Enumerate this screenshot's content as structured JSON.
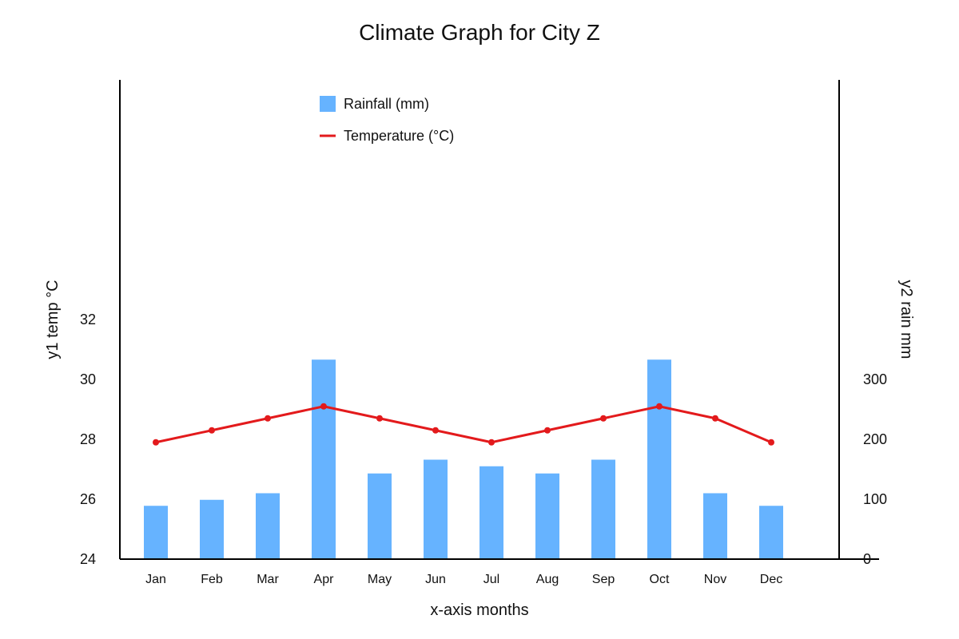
{
  "chart_data": {
    "type": "bar",
    "title": "Climate Graph for City Z",
    "xlabel": "x-axis months",
    "ylabel_left": "y1 temp °C",
    "ylabel_right": "y2 rain mm",
    "categories": [
      "Jan",
      "Feb",
      "Mar",
      "Apr",
      "May",
      "Jun",
      "Jul",
      "Aug",
      "Sep",
      "Oct",
      "Nov",
      "Dec"
    ],
    "series": [
      {
        "name": "Rainfall (mm)",
        "type": "bar",
        "axis": "right",
        "color": "#66b3ff",
        "values": [
          89,
          99,
          110,
          333,
          143,
          166,
          155,
          143,
          166,
          333,
          110,
          89
        ]
      },
      {
        "name": "Temperature (°C)",
        "type": "line",
        "axis": "left",
        "color": "#e31a1c",
        "values": [
          27.9,
          28.3,
          28.7,
          29.1,
          28.7,
          28.3,
          27.9,
          28.3,
          28.7,
          29.1,
          28.7,
          27.9
        ]
      }
    ],
    "y_left": {
      "ticks": [
        "24",
        "26",
        "28",
        "30",
        "32"
      ],
      "ylim": [
        24,
        32
      ]
    },
    "y_right": {
      "ticks": [
        "0",
        "100",
        "200",
        "300"
      ],
      "ylim": [
        0,
        300
      ]
    },
    "grid": false,
    "legend_position": "top-center"
  }
}
